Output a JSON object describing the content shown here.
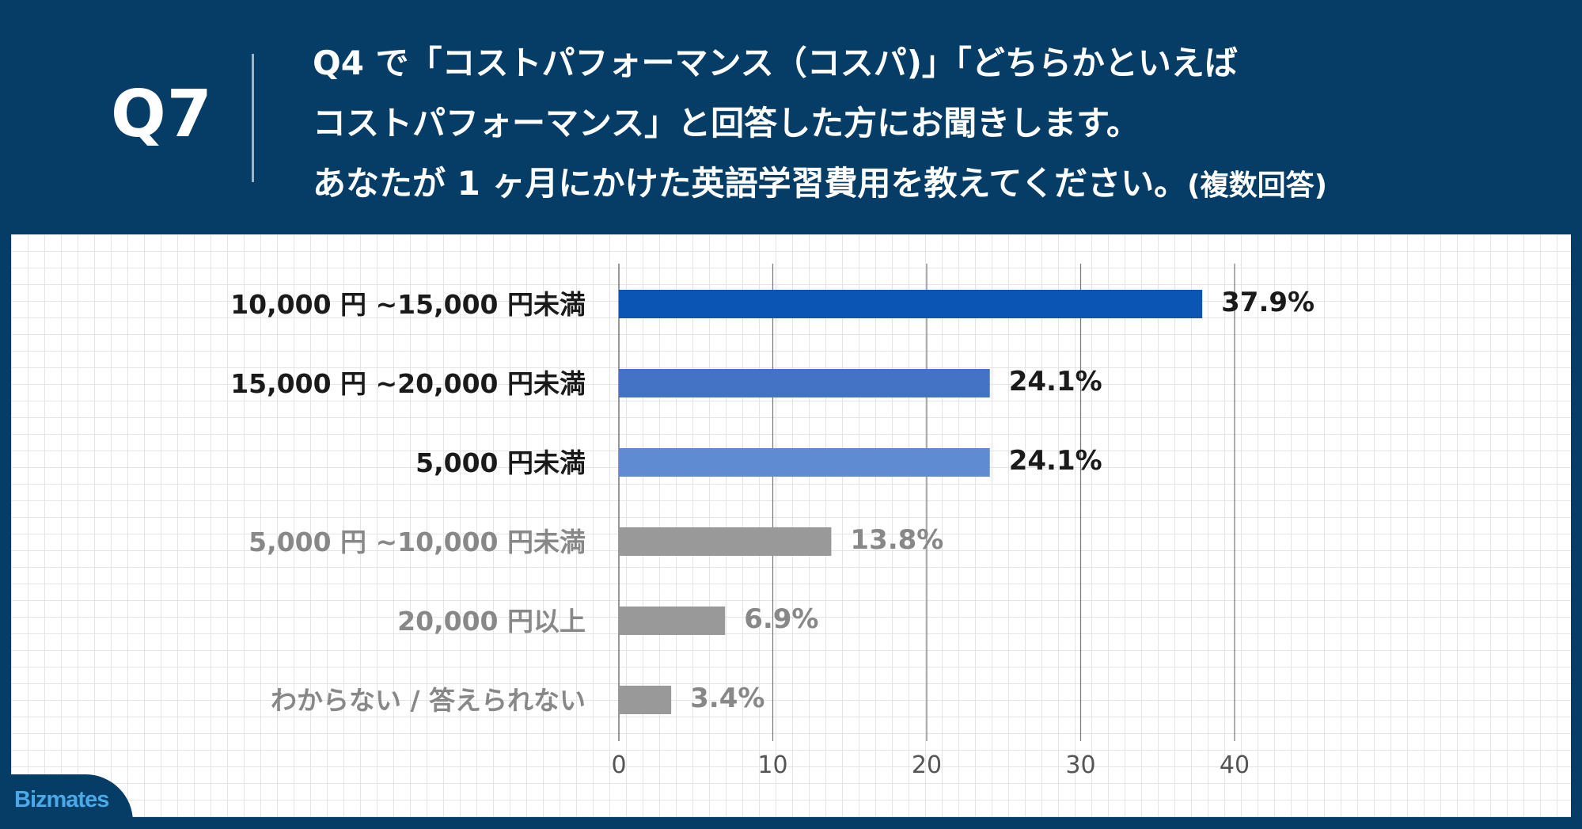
{
  "header": {
    "q_label": "Q7",
    "question_lines": [
      "Q4 で「コストパフォーマンス（コスパ)」「どちらかといえば",
      "コストパフォーマンス」と回答した方にお聞きします。",
      "あなたが 1 ヶ月にかけた英語学習費用を教えてください。"
    ],
    "question_note": "(複数回答)"
  },
  "brand": {
    "logo_text": "Bizmates"
  },
  "colors": {
    "background": "#053d67",
    "bar_dark_blue": "#0b56b4",
    "bar_mid_blue": "#4472c4",
    "bar_light_blue": "#5f8bd2",
    "bar_gray": "#999999",
    "label_dark": "#1a1a1a",
    "label_gray": "#888888"
  },
  "chart_data": {
    "type": "bar",
    "orientation": "horizontal",
    "categories": [
      "10,000 円 ~15,000 円未満",
      "15,000 円 ~20,000 円未満",
      "5,000 円未満",
      "5,000 円 ~10,000 円未満",
      "20,000 円以上",
      "わからない / 答えられない"
    ],
    "values": [
      37.9,
      24.1,
      24.1,
      13.8,
      6.9,
      3.4
    ],
    "value_labels": [
      "37.9%",
      "24.1%",
      "24.1%",
      "13.8%",
      "6.9%",
      "3.4%"
    ],
    "bar_colors": [
      "#0b56b4",
      "#4472c4",
      "#5f8bd2",
      "#999999",
      "#999999",
      "#999999"
    ],
    "label_colors": [
      "#1a1a1a",
      "#1a1a1a",
      "#1a1a1a",
      "#888888",
      "#888888",
      "#888888"
    ],
    "xticks": [
      0,
      10,
      20,
      30,
      40
    ],
    "xlim": [
      0,
      40
    ],
    "grid": true,
    "legend": "none",
    "title": "",
    "xlabel": "",
    "ylabel": ""
  }
}
